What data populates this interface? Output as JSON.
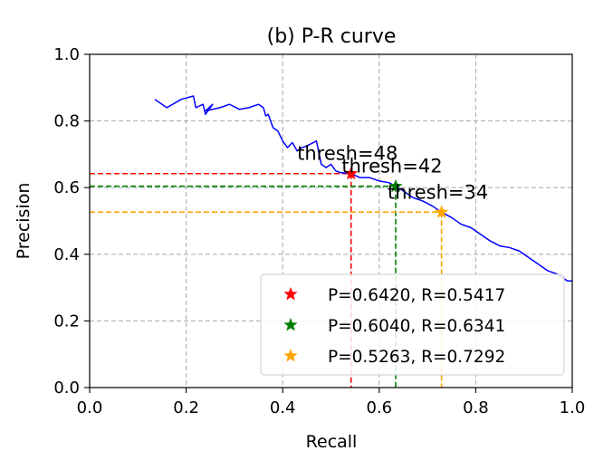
{
  "chart_data": {
    "type": "line",
    "title": "(b) P-R curve",
    "xlabel": "Recall",
    "ylabel": "Precision",
    "xlim": [
      0.0,
      1.0
    ],
    "ylim": [
      0.0,
      1.0
    ],
    "xticks": [
      "0.0",
      "0.2",
      "0.4",
      "0.6",
      "0.8",
      "1.0"
    ],
    "yticks": [
      "0.0",
      "0.2",
      "0.4",
      "0.6",
      "0.8",
      "1.0"
    ],
    "grid": true,
    "legend_position": "lower-right",
    "series": [
      {
        "color": "#0000ff",
        "x": [
          0.135,
          0.16,
          0.19,
          0.215,
          0.22,
          0.235,
          0.24,
          0.255,
          0.24,
          0.27,
          0.29,
          0.31,
          0.33,
          0.35,
          0.36,
          0.365,
          0.37,
          0.38,
          0.39,
          0.4,
          0.41,
          0.42,
          0.43,
          0.44,
          0.45,
          0.47,
          0.48,
          0.49,
          0.5,
          0.51,
          0.52,
          0.5417,
          0.56,
          0.58,
          0.6,
          0.62,
          0.6341,
          0.65,
          0.67,
          0.69,
          0.71,
          0.7292,
          0.75,
          0.77,
          0.79,
          0.81,
          0.83,
          0.85,
          0.87,
          0.89,
          0.91,
          0.93,
          0.95,
          0.97,
          0.99,
          1.0
        ],
        "y": [
          0.865,
          0.84,
          0.865,
          0.875,
          0.84,
          0.85,
          0.82,
          0.85,
          0.83,
          0.84,
          0.85,
          0.835,
          0.84,
          0.85,
          0.84,
          0.815,
          0.82,
          0.78,
          0.77,
          0.74,
          0.72,
          0.735,
          0.71,
          0.72,
          0.725,
          0.74,
          0.67,
          0.66,
          0.67,
          0.65,
          0.645,
          0.642,
          0.63,
          0.63,
          0.62,
          0.615,
          0.604,
          0.59,
          0.57,
          0.56,
          0.545,
          0.5263,
          0.51,
          0.49,
          0.48,
          0.46,
          0.44,
          0.425,
          0.42,
          0.41,
          0.39,
          0.37,
          0.35,
          0.34,
          0.32,
          0.32
        ]
      }
    ],
    "markers": [
      {
        "x": 0.5417,
        "y": 0.642,
        "color": "#ff0000",
        "annotation": "thresh=48",
        "legend": "P=0.6420, R=0.5417"
      },
      {
        "x": 0.6341,
        "y": 0.604,
        "color": "#008000",
        "annotation": "thresh=42",
        "legend": "P=0.6040, R=0.6341"
      },
      {
        "x": 0.7292,
        "y": 0.5263,
        "color": "#ffa500",
        "annotation": "thresh=34",
        "legend": "P=0.5263, R=0.7292"
      }
    ]
  }
}
